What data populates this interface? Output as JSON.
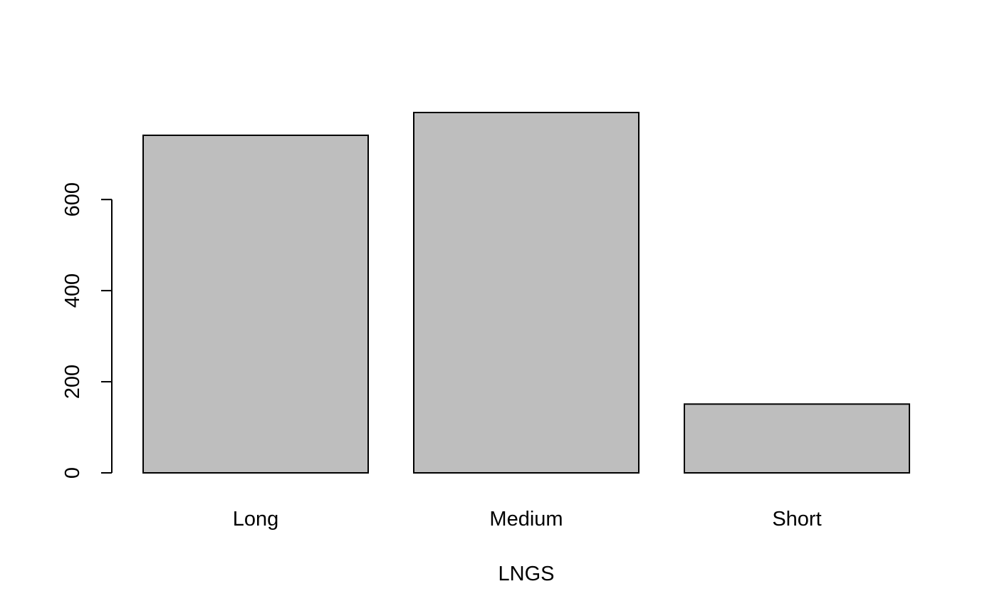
{
  "chart_data": {
    "type": "bar",
    "categories": [
      "Long",
      "Medium",
      "Short"
    ],
    "values": [
      741,
      791,
      151
    ],
    "xlabel": "LNGS",
    "ylabel": "",
    "ylim": [
      0,
      791
    ],
    "yticks": [
      0,
      200,
      400,
      600
    ],
    "yticks_labels": [
      "0",
      "200",
      "400",
      "600"
    ],
    "grid": false,
    "legend": "none",
    "colors": {
      "bar_fill": "#bebebe",
      "bar_stroke": "#000000",
      "axis": "#000000",
      "background": "#ffffff"
    }
  }
}
